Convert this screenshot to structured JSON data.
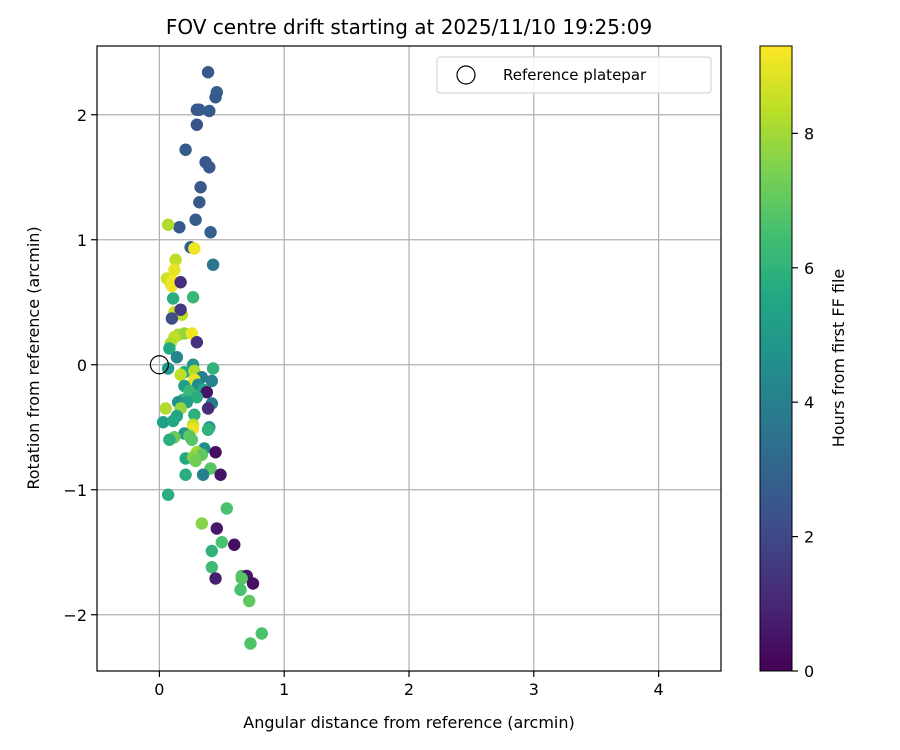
{
  "chart_data": {
    "type": "scatter",
    "title": "FOV centre drift starting at 2025/11/10 19:25:09",
    "xlabel": "Angular distance from reference (arcmin)",
    "ylabel": "Rotation from reference (arcmin)",
    "xlim": [
      -0.5,
      4.5
    ],
    "ylim": [
      -2.45,
      2.55
    ],
    "xticks": [
      0,
      1,
      2,
      3,
      4
    ],
    "yticks": [
      -2,
      -1,
      0,
      1,
      2
    ],
    "grid": true,
    "legend_position": "top-right",
    "reference": {
      "label": "Reference platepar",
      "x": 0,
      "y": 0
    },
    "colorbar": {
      "label": "Hours from first FF file",
      "min": 0,
      "max": 9.3,
      "ticks": [
        0,
        2,
        4,
        6,
        8
      ],
      "colormap": "viridis"
    },
    "points": [
      {
        "x": 0.39,
        "y": 2.34,
        "c": 2.6
      },
      {
        "x": 0.46,
        "y": 2.18,
        "c": 2.8
      },
      {
        "x": 0.45,
        "y": 2.14,
        "c": 2.6
      },
      {
        "x": 0.3,
        "y": 2.04,
        "c": 2.5
      },
      {
        "x": 0.32,
        "y": 2.04,
        "c": 2.6
      },
      {
        "x": 0.4,
        "y": 2.03,
        "c": 2.7
      },
      {
        "x": 0.3,
        "y": 1.92,
        "c": 2.4
      },
      {
        "x": 0.21,
        "y": 1.72,
        "c": 2.7
      },
      {
        "x": 0.37,
        "y": 1.62,
        "c": 2.5
      },
      {
        "x": 0.4,
        "y": 1.58,
        "c": 2.6
      },
      {
        "x": 0.33,
        "y": 1.42,
        "c": 2.5
      },
      {
        "x": 0.32,
        "y": 1.3,
        "c": 2.6
      },
      {
        "x": 0.29,
        "y": 1.16,
        "c": 2.7
      },
      {
        "x": 0.16,
        "y": 1.1,
        "c": 2.6
      },
      {
        "x": 0.41,
        "y": 1.06,
        "c": 2.8
      },
      {
        "x": 0.25,
        "y": 0.94,
        "c": 2.8
      },
      {
        "x": 0.43,
        "y": 0.8,
        "c": 3.6
      },
      {
        "x": 0.07,
        "y": 1.12,
        "c": 8.2
      },
      {
        "x": 0.13,
        "y": 0.84,
        "c": 8.4
      },
      {
        "x": 0.28,
        "y": 0.93,
        "c": 9.1
      },
      {
        "x": 0.06,
        "y": 0.69,
        "c": 8.6
      },
      {
        "x": 0.12,
        "y": 0.76,
        "c": 9.0
      },
      {
        "x": 0.09,
        "y": 0.65,
        "c": 8.8
      },
      {
        "x": 0.11,
        "y": 0.67,
        "c": 9.2
      },
      {
        "x": 0.1,
        "y": 0.63,
        "c": 9.1
      },
      {
        "x": 0.17,
        "y": 0.66,
        "c": 1.2
      },
      {
        "x": 0.11,
        "y": 0.53,
        "c": 5.8
      },
      {
        "x": 0.27,
        "y": 0.54,
        "c": 6.2
      },
      {
        "x": 0.12,
        "y": 0.42,
        "c": 8.5
      },
      {
        "x": 0.16,
        "y": 0.41,
        "c": 9.0
      },
      {
        "x": 0.18,
        "y": 0.4,
        "c": 8.3
      },
      {
        "x": 0.17,
        "y": 0.44,
        "c": 1.5
      },
      {
        "x": 0.1,
        "y": 0.37,
        "c": 2.2
      },
      {
        "x": 0.15,
        "y": 0.24,
        "c": 8.0
      },
      {
        "x": 0.2,
        "y": 0.25,
        "c": 7.8
      },
      {
        "x": 0.12,
        "y": 0.22,
        "c": 8.4
      },
      {
        "x": 0.26,
        "y": 0.25,
        "c": 9.1
      },
      {
        "x": 0.09,
        "y": 0.17,
        "c": 8.2
      },
      {
        "x": 0.08,
        "y": 0.13,
        "c": 5.6
      },
      {
        "x": 0.3,
        "y": 0.18,
        "c": 1.3
      },
      {
        "x": 0.14,
        "y": 0.06,
        "c": 4.2
      },
      {
        "x": 0.27,
        "y": 0.0,
        "c": 4.8
      },
      {
        "x": 0.07,
        "y": -0.03,
        "c": 5.0
      },
      {
        "x": 0.2,
        "y": -0.06,
        "c": 5.6
      },
      {
        "x": 0.28,
        "y": -0.05,
        "c": 8.2
      },
      {
        "x": 0.43,
        "y": -0.03,
        "c": 6.0
      },
      {
        "x": 0.34,
        "y": -0.1,
        "c": 4.0
      },
      {
        "x": 0.17,
        "y": -0.08,
        "c": 8.4
      },
      {
        "x": 0.28,
        "y": -0.12,
        "c": 9.0
      },
      {
        "x": 0.2,
        "y": -0.17,
        "c": 5.2
      },
      {
        "x": 0.31,
        "y": -0.16,
        "c": 4.4
      },
      {
        "x": 0.35,
        "y": -0.2,
        "c": 5.5
      },
      {
        "x": 0.38,
        "y": -0.22,
        "c": 0.5
      },
      {
        "x": 0.42,
        "y": -0.13,
        "c": 4.1
      },
      {
        "x": 0.24,
        "y": -0.21,
        "c": 6.2
      },
      {
        "x": 0.3,
        "y": -0.26,
        "c": 5.8
      },
      {
        "x": 0.19,
        "y": -0.28,
        "c": 6.1
      },
      {
        "x": 0.15,
        "y": -0.3,
        "c": 4.6
      },
      {
        "x": 0.22,
        "y": -0.3,
        "c": 5.2
      },
      {
        "x": 0.42,
        "y": -0.31,
        "c": 3.8
      },
      {
        "x": 0.39,
        "y": -0.35,
        "c": 1.2
      },
      {
        "x": 0.05,
        "y": -0.35,
        "c": 8.2
      },
      {
        "x": 0.17,
        "y": -0.35,
        "c": 7.8
      },
      {
        "x": 0.28,
        "y": -0.4,
        "c": 5.9
      },
      {
        "x": 0.14,
        "y": -0.41,
        "c": 5.4
      },
      {
        "x": 0.03,
        "y": -0.46,
        "c": 5.2
      },
      {
        "x": 0.11,
        "y": -0.45,
        "c": 5.6
      },
      {
        "x": 0.27,
        "y": -0.48,
        "c": 8.4
      },
      {
        "x": 0.27,
        "y": -0.51,
        "c": 9.0
      },
      {
        "x": 0.4,
        "y": -0.5,
        "c": 5.0
      },
      {
        "x": 0.39,
        "y": -0.52,
        "c": 6.0
      },
      {
        "x": 0.2,
        "y": -0.55,
        "c": 5.0
      },
      {
        "x": 0.12,
        "y": -0.58,
        "c": 7.2
      },
      {
        "x": 0.08,
        "y": -0.6,
        "c": 5.8
      },
      {
        "x": 0.24,
        "y": -0.57,
        "c": 7.0
      },
      {
        "x": 0.26,
        "y": -0.6,
        "c": 6.8
      },
      {
        "x": 0.36,
        "y": -0.67,
        "c": 4.6
      },
      {
        "x": 0.45,
        "y": -0.7,
        "c": 0.3
      },
      {
        "x": 0.3,
        "y": -0.7,
        "c": 8.0
      },
      {
        "x": 0.34,
        "y": -0.72,
        "c": 7.0
      },
      {
        "x": 0.21,
        "y": -0.75,
        "c": 5.6
      },
      {
        "x": 0.27,
        "y": -0.74,
        "c": 7.6
      },
      {
        "x": 0.29,
        "y": -0.77,
        "c": 7.3
      },
      {
        "x": 0.41,
        "y": -0.83,
        "c": 6.8
      },
      {
        "x": 0.21,
        "y": -0.88,
        "c": 5.8
      },
      {
        "x": 0.35,
        "y": -0.88,
        "c": 4.0
      },
      {
        "x": 0.49,
        "y": -0.88,
        "c": 0.5
      },
      {
        "x": 0.07,
        "y": -1.04,
        "c": 5.8
      },
      {
        "x": 0.54,
        "y": -1.15,
        "c": 6.6
      },
      {
        "x": 0.34,
        "y": -1.27,
        "c": 7.6
      },
      {
        "x": 0.46,
        "y": -1.31,
        "c": 0.6
      },
      {
        "x": 0.5,
        "y": -1.42,
        "c": 6.6
      },
      {
        "x": 0.6,
        "y": -1.44,
        "c": 0.4
      },
      {
        "x": 0.42,
        "y": -1.49,
        "c": 6.0
      },
      {
        "x": 0.42,
        "y": -1.62,
        "c": 6.4
      },
      {
        "x": 0.45,
        "y": -1.71,
        "c": 0.8
      },
      {
        "x": 0.66,
        "y": -1.69,
        "c": 6.6
      },
      {
        "x": 0.7,
        "y": -1.69,
        "c": 0.5
      },
      {
        "x": 0.66,
        "y": -1.71,
        "c": 6.8
      },
      {
        "x": 0.75,
        "y": -1.75,
        "c": 0.4
      },
      {
        "x": 0.65,
        "y": -1.8,
        "c": 6.6
      },
      {
        "x": 0.72,
        "y": -1.89,
        "c": 7.0
      },
      {
        "x": 0.82,
        "y": -2.15,
        "c": 6.6
      },
      {
        "x": 0.73,
        "y": -2.23,
        "c": 6.7
      }
    ]
  }
}
